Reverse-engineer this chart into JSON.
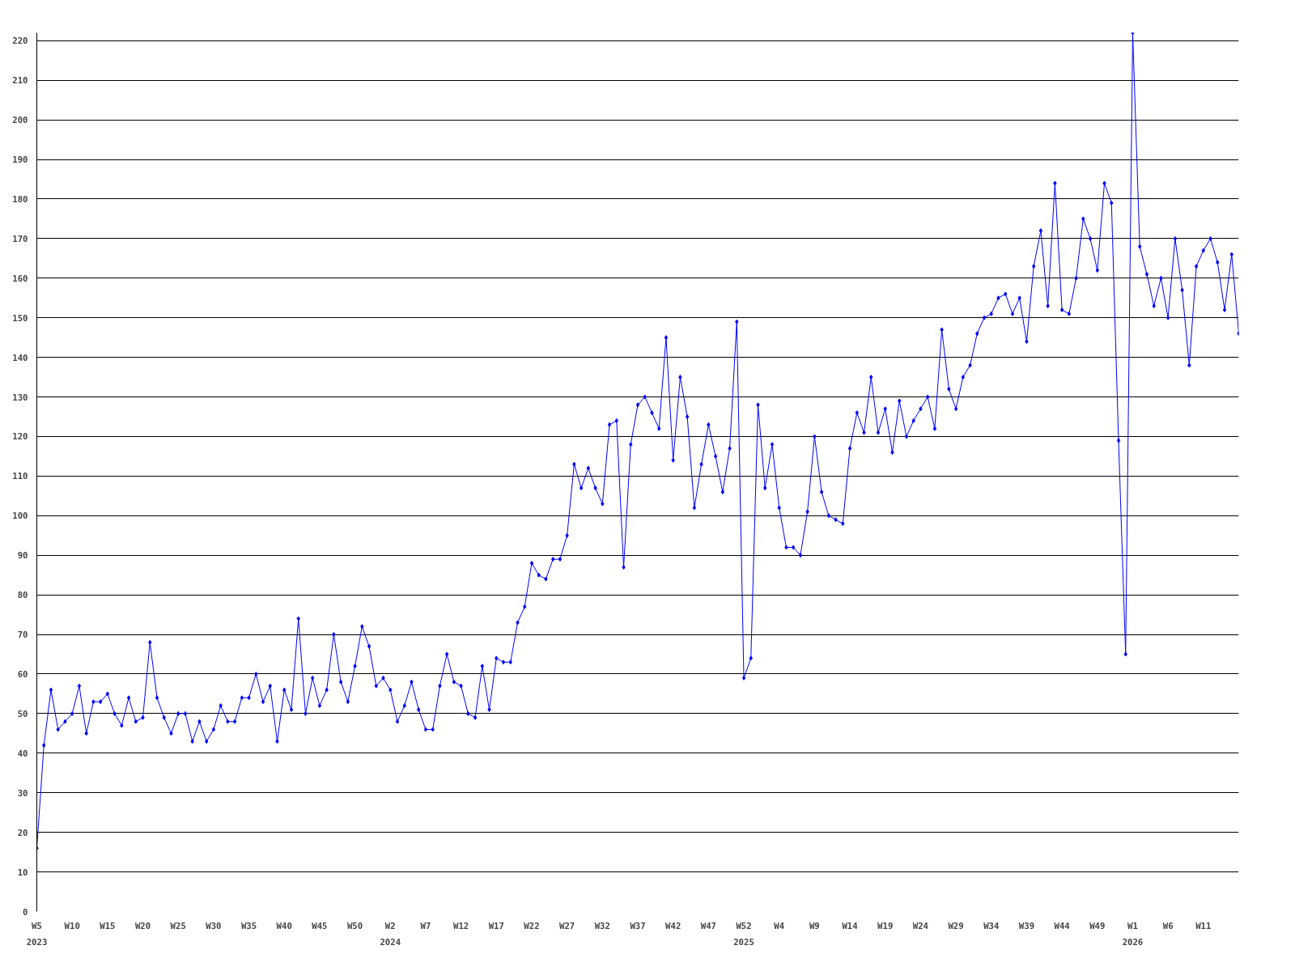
{
  "chart_data": {
    "type": "line",
    "marker": "diamond",
    "grid": "y",
    "ylim": [
      0,
      222
    ],
    "yticks": [
      0,
      10,
      20,
      30,
      40,
      50,
      60,
      70,
      80,
      90,
      100,
      110,
      120,
      130,
      140,
      150,
      160,
      170,
      180,
      190,
      200,
      210,
      220
    ],
    "categories": [
      "W5\n2023",
      null,
      null,
      null,
      null,
      "W10",
      null,
      null,
      null,
      null,
      "W15",
      null,
      null,
      null,
      null,
      "W20",
      null,
      null,
      null,
      null,
      "W25",
      null,
      null,
      null,
      null,
      "W30",
      null,
      null,
      null,
      null,
      "W35",
      null,
      null,
      null,
      null,
      "W40",
      null,
      null,
      null,
      null,
      "W45",
      null,
      null,
      null,
      null,
      "W50",
      null,
      null,
      null,
      null,
      "W2\n2024",
      null,
      null,
      null,
      null,
      "W7",
      null,
      null,
      null,
      null,
      "W12",
      null,
      null,
      null,
      null,
      "W17",
      null,
      null,
      null,
      null,
      "W22",
      null,
      null,
      null,
      null,
      "W27",
      null,
      null,
      null,
      null,
      "W32",
      null,
      null,
      null,
      null,
      "W37",
      null,
      null,
      null,
      null,
      "W42",
      null,
      null,
      null,
      null,
      "W47",
      null,
      null,
      null,
      null,
      "W52\n2025",
      null,
      null,
      null,
      null,
      "W4",
      null,
      null,
      null,
      null,
      "W9",
      null,
      null,
      null,
      null,
      "W14",
      null,
      null,
      null,
      null,
      "W19",
      null,
      null,
      null,
      null,
      "W24",
      null,
      null,
      null,
      null,
      "W29",
      null,
      null,
      null,
      null,
      "W34",
      null,
      null,
      null,
      null,
      "W39",
      null,
      null,
      null,
      null,
      "W44",
      null,
      null,
      null,
      null,
      "W49",
      null,
      null,
      null,
      null,
      "W1\n2026",
      null,
      null,
      null,
      null,
      "W6",
      null,
      null,
      null,
      null,
      "W11",
      null,
      null,
      null,
      null,
      null
    ],
    "series": [
      {
        "color": "#0000ff",
        "values": [
          16,
          42,
          56,
          46,
          48,
          50,
          57,
          45,
          53,
          53,
          55,
          50,
          47,
          54,
          48,
          49,
          68,
          54,
          49,
          45,
          50,
          50,
          43,
          48,
          43,
          46,
          52,
          48,
          48,
          54,
          54,
          60,
          53,
          57,
          43,
          56,
          51,
          74,
          50,
          59,
          52,
          56,
          70,
          58,
          53,
          62,
          72,
          67,
          57,
          59,
          56,
          48,
          52,
          58,
          51,
          46,
          46,
          57,
          65,
          58,
          57,
          50,
          49,
          62,
          51,
          64,
          63,
          63,
          73,
          77,
          88,
          85,
          84,
          89,
          89,
          95,
          113,
          107,
          112,
          107,
          103,
          123,
          124,
          87,
          118,
          128,
          130,
          126,
          122,
          145,
          114,
          135,
          125,
          102,
          113,
          123,
          115,
          106,
          117,
          149,
          59,
          64,
          128,
          107,
          118,
          102,
          92,
          92,
          90,
          101,
          120,
          106,
          100,
          99,
          98,
          117,
          126,
          121,
          135,
          121,
          127,
          116,
          129,
          120,
          124,
          127,
          130,
          122,
          147,
          132,
          127,
          135,
          138,
          146,
          150,
          151,
          155,
          156,
          151,
          155,
          144,
          163,
          172,
          153,
          184,
          152,
          151,
          160,
          175,
          170,
          162,
          184,
          179,
          119,
          65,
          222,
          168,
          161,
          153,
          160,
          150,
          170,
          157,
          138,
          163,
          167,
          170,
          164,
          152,
          166,
          146
        ]
      }
    ]
  }
}
